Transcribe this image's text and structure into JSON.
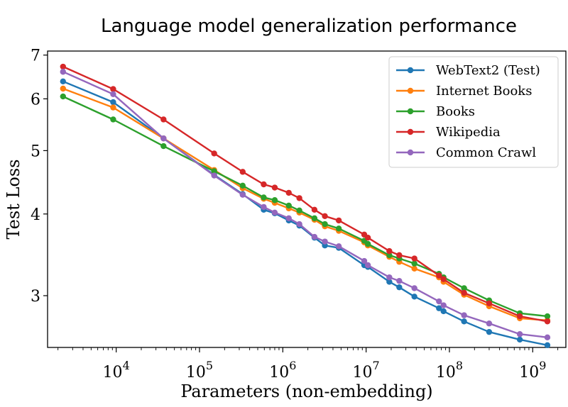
{
  "chart_data": {
    "type": "line",
    "title": "Language model generalization performance",
    "xlabel": "Parameters (non-embedding)",
    "ylabel": "Test Loss",
    "xscale": "log",
    "yscale": "log",
    "xlim": [
      1500,
      2500000000
    ],
    "ylim": [
      2.5,
      7.1
    ],
    "x_ticks": [
      {
        "value": 10000,
        "base": "10",
        "exp": "4"
      },
      {
        "value": 100000,
        "base": "10",
        "exp": "5"
      },
      {
        "value": 1000000,
        "base": "10",
        "exp": "6"
      },
      {
        "value": 10000000,
        "base": "10",
        "exp": "7"
      },
      {
        "value": 100000000,
        "base": "10",
        "exp": "8"
      },
      {
        "value": 1000000000,
        "base": "10",
        "exp": "9"
      }
    ],
    "y_ticks": [
      {
        "value": 3,
        "label": "3"
      },
      {
        "value": 4,
        "label": "4"
      },
      {
        "value": 5,
        "label": "5"
      },
      {
        "value": 6,
        "label": "6"
      },
      {
        "value": 7,
        "label": "7"
      }
    ],
    "x": [
      2300,
      9200,
      37000,
      150000,
      330000,
      590000,
      800000,
      1180000,
      1580000,
      2400000,
      3200000,
      4700000,
      9500000,
      10500000,
      19000000,
      25000000,
      38000000,
      75000000,
      85000000,
      150000000,
      300000000,
      700000000,
      1500000000
    ],
    "grid": false,
    "legend_position": "top-right",
    "series": [
      {
        "name": "WebText2 (Test)",
        "color": "#1f77b4",
        "values": [
          6.38,
          5.93,
          5.22,
          4.59,
          4.29,
          4.06,
          4.01,
          3.91,
          3.84,
          3.68,
          3.58,
          3.55,
          3.34,
          3.32,
          3.15,
          3.09,
          2.99,
          2.87,
          2.84,
          2.74,
          2.64,
          2.57,
          2.52
        ]
      },
      {
        "name": "Internet Books",
        "color": "#ff7f0e",
        "values": [
          6.22,
          5.82,
          5.22,
          4.67,
          4.38,
          4.22,
          4.16,
          4.08,
          4.02,
          3.92,
          3.83,
          3.77,
          3.62,
          3.58,
          3.44,
          3.38,
          3.3,
          3.2,
          3.15,
          3.01,
          2.89,
          2.77,
          2.75
        ]
      },
      {
        "name": "Books",
        "color": "#2ca02c",
        "values": [
          6.05,
          5.58,
          5.08,
          4.65,
          4.42,
          4.24,
          4.2,
          4.12,
          4.05,
          3.94,
          3.86,
          3.8,
          3.64,
          3.6,
          3.46,
          3.42,
          3.36,
          3.24,
          3.2,
          3.08,
          2.95,
          2.82,
          2.79
        ]
      },
      {
        "name": "Wikipedia",
        "color": "#d62728",
        "values": [
          6.72,
          6.21,
          5.58,
          4.95,
          4.64,
          4.44,
          4.39,
          4.31,
          4.23,
          4.06,
          3.97,
          3.91,
          3.72,
          3.68,
          3.51,
          3.46,
          3.42,
          3.22,
          3.18,
          3.03,
          2.92,
          2.79,
          2.74
        ]
      },
      {
        "name": "Common Crawl",
        "color": "#9467bd",
        "values": [
          6.6,
          6.1,
          5.22,
          4.58,
          4.28,
          4.1,
          4.02,
          3.94,
          3.86,
          3.69,
          3.63,
          3.57,
          3.39,
          3.34,
          3.2,
          3.16,
          3.08,
          2.94,
          2.9,
          2.8,
          2.72,
          2.62,
          2.59
        ]
      }
    ]
  }
}
